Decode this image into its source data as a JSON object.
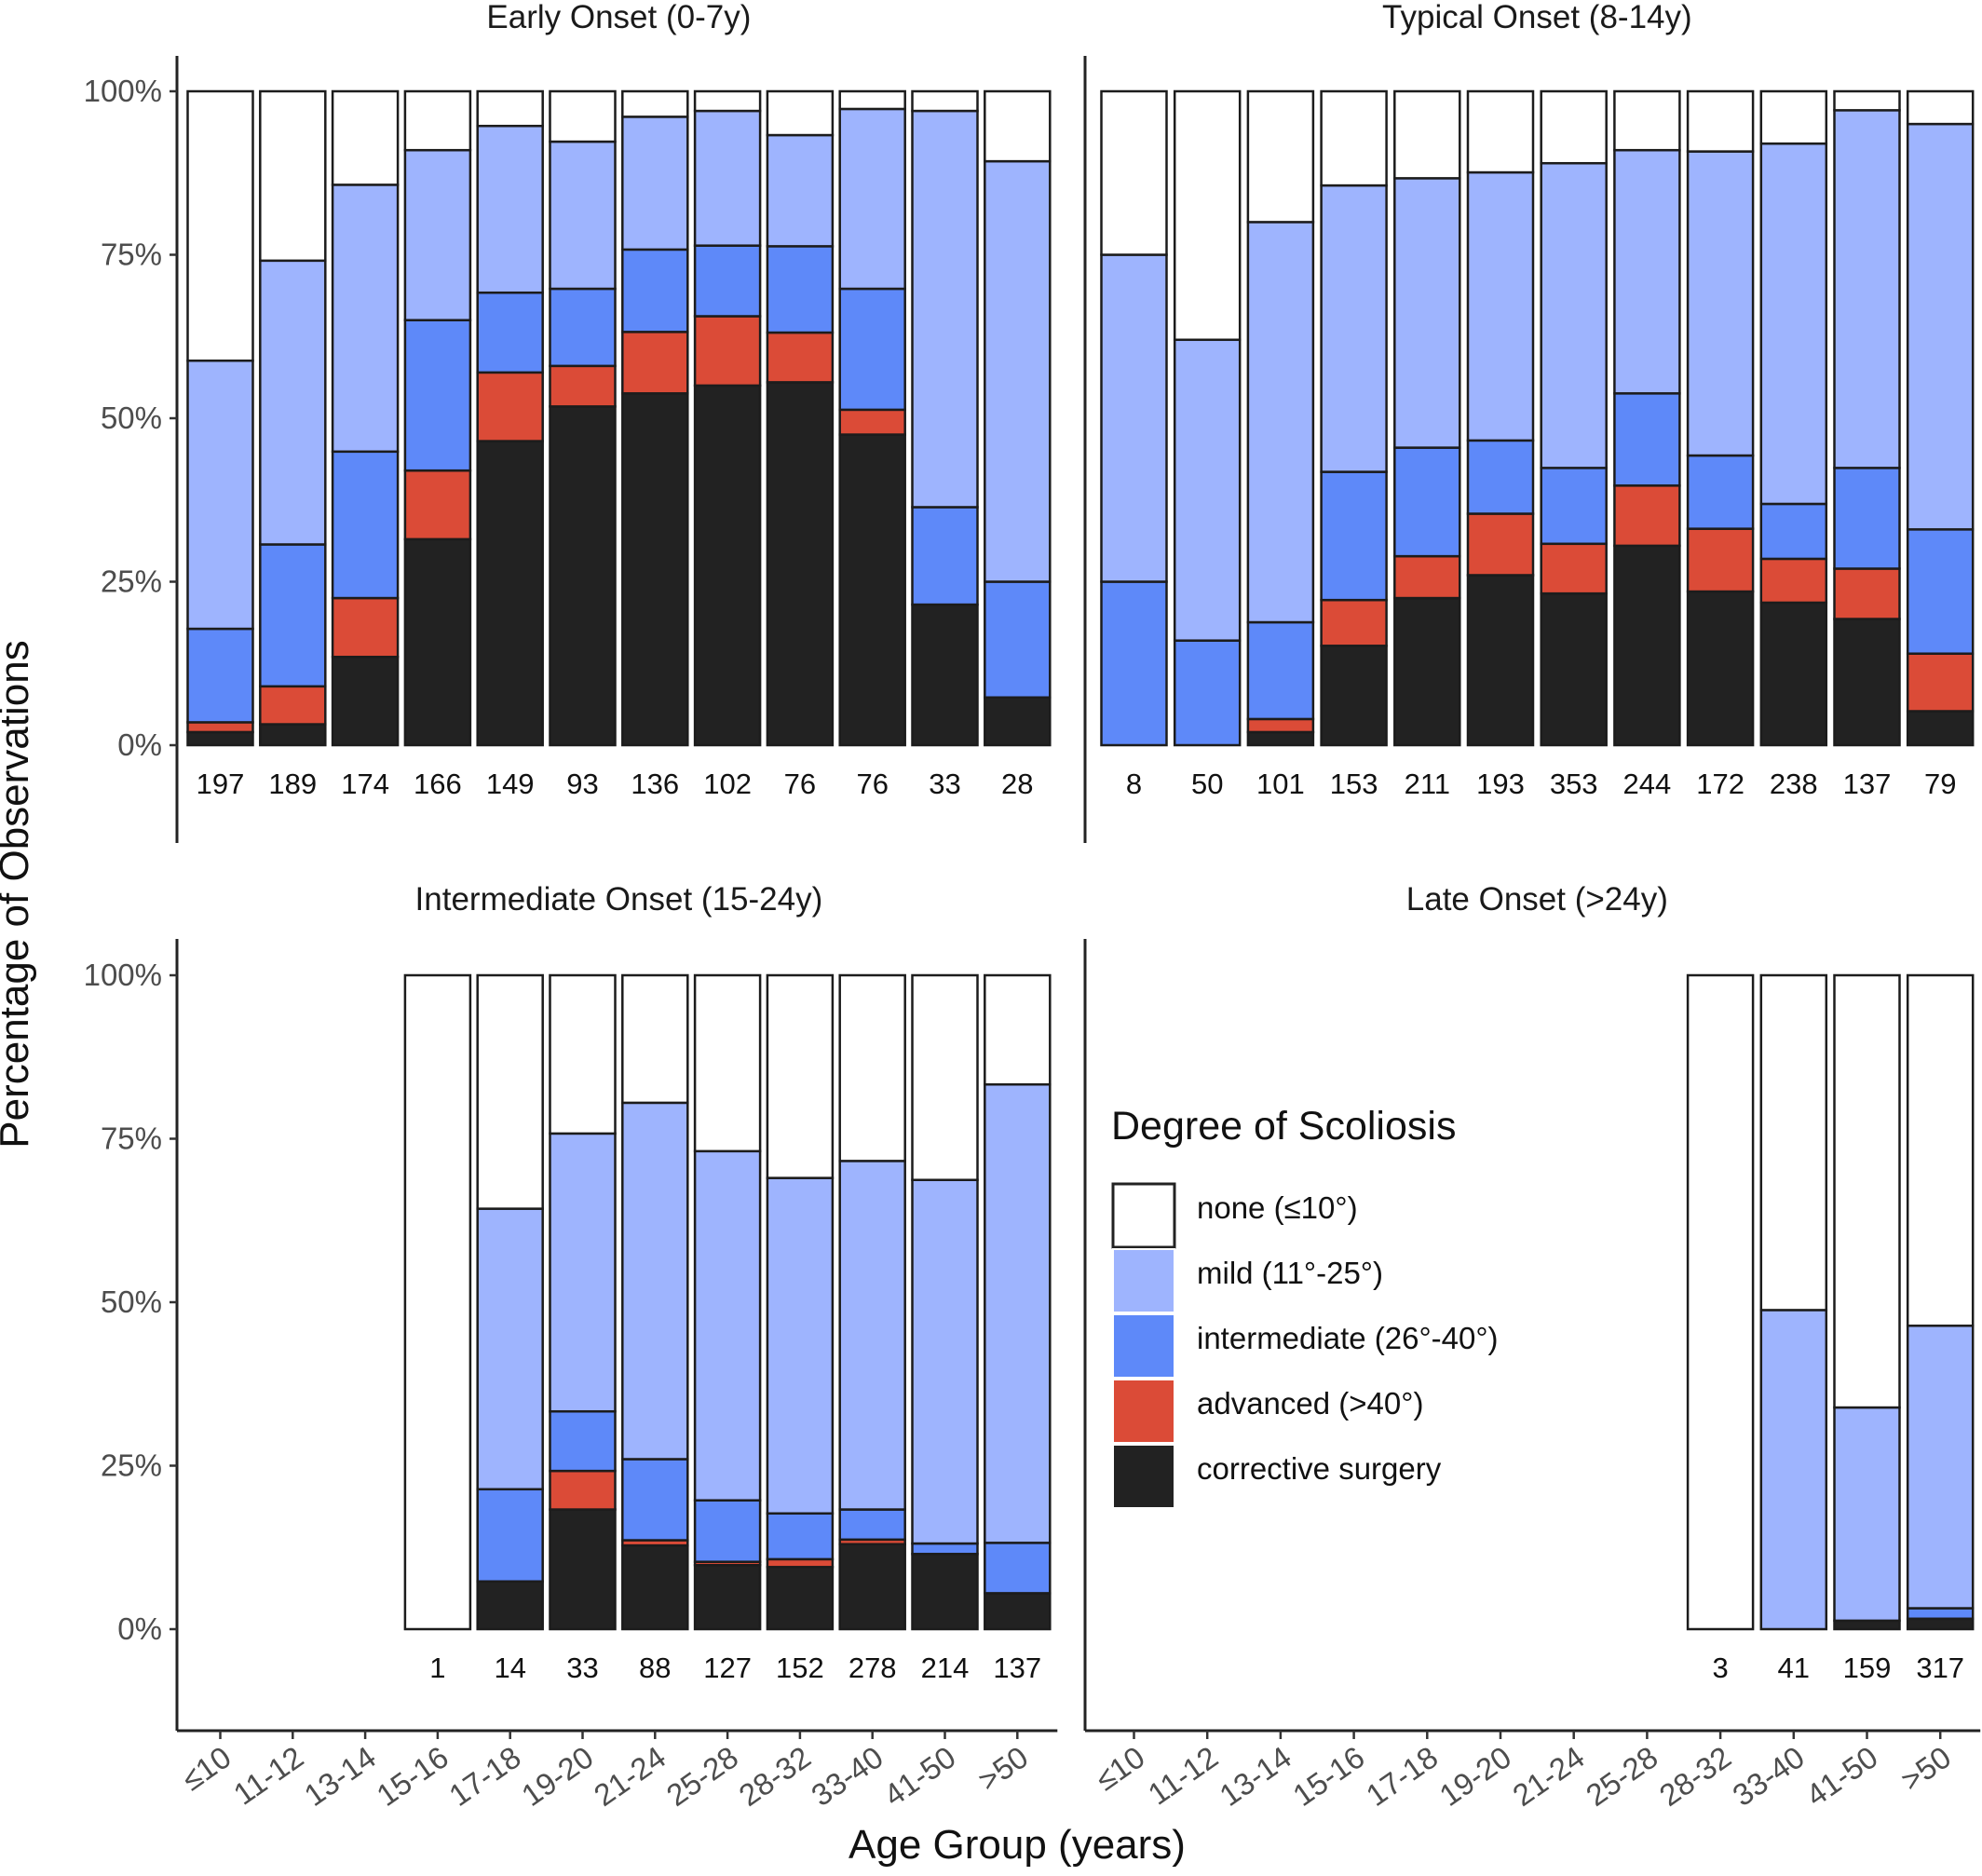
{
  "chart_data": {
    "type": "bar",
    "stacked": "percent",
    "ylabel": "Percentage of Observations",
    "xlabel": "Age Group (years)",
    "yticks": [
      "0%",
      "25%",
      "50%",
      "75%",
      "100%"
    ],
    "ylim": [
      0,
      100
    ],
    "categories": [
      "≤10",
      "11-12",
      "13-14",
      "15-16",
      "17-18",
      "19-20",
      "21-24",
      "25-28",
      "28-32",
      "33-40",
      "41-50",
      ">50"
    ],
    "legend": {
      "title": "Degree of Scoliosis",
      "placement": "inside bottom-left panel (between Intermediate and Late Onset bars)",
      "items": [
        {
          "key": "none",
          "label": "none (≤10°)",
          "color": "#ffffff"
        },
        {
          "key": "mild",
          "label": "mild (11°-25°)",
          "color": "#9eb4fe"
        },
        {
          "key": "intermediate",
          "label": "intermediate (26°-40°)",
          "color": "#5e89f9"
        },
        {
          "key": "advanced",
          "label": "advanced (>40°)",
          "color": "#db4b37"
        },
        {
          "key": "surgery",
          "label": "corrective surgery",
          "color": "#222222"
        }
      ]
    },
    "panels": [
      {
        "title": "Early Onset (0-7y)",
        "bars": [
          {
            "category": "≤10",
            "n": "197",
            "surgery": 2,
            "advanced": 1.5,
            "intermediate": 14.3,
            "mild": 41,
            "none": 41.2
          },
          {
            "category": "11-12",
            "n": "189",
            "surgery": 3.2,
            "advanced": 5.8,
            "intermediate": 21.7,
            "mild": 43.4,
            "none": 25.9
          },
          {
            "category": "13-14",
            "n": "174",
            "surgery": 13.5,
            "advanced": 9,
            "intermediate": 22.4,
            "mild": 40.8,
            "none": 14.3
          },
          {
            "category": "15-16",
            "n": "166",
            "surgery": 31.5,
            "advanced": 10.5,
            "intermediate": 23,
            "mild": 26,
            "none": 9
          },
          {
            "category": "17-18",
            "n": "149",
            "surgery": 46.5,
            "advanced": 10.5,
            "intermediate": 12.2,
            "mild": 25.5,
            "none": 5.3
          },
          {
            "category": "19-20",
            "n": "93",
            "surgery": 51.8,
            "advanced": 6.2,
            "intermediate": 11.8,
            "mild": 22.5,
            "none": 7.7
          },
          {
            "category": "21-24",
            "n": "136",
            "surgery": 53.8,
            "advanced": 9.4,
            "intermediate": 12.6,
            "mild": 20.3,
            "none": 3.9
          },
          {
            "category": "25-28",
            "n": "102",
            "surgery": 55,
            "advanced": 10.6,
            "intermediate": 10.8,
            "mild": 20.6,
            "none": 3
          },
          {
            "category": "28-32",
            "n": "76",
            "surgery": 55.5,
            "advanced": 7.6,
            "intermediate": 13.2,
            "mild": 17,
            "none": 6.7
          },
          {
            "category": "33-40",
            "n": "76",
            "surgery": 47.5,
            "advanced": 3.8,
            "intermediate": 18.5,
            "mild": 27.5,
            "none": 2.7
          },
          {
            "category": "41-50",
            "n": "33",
            "surgery": 21.5,
            "advanced": 0,
            "intermediate": 14.9,
            "mild": 60.6,
            "none": 3
          },
          {
            "category": ">50",
            "n": "28",
            "surgery": 7.3,
            "advanced": 0,
            "intermediate": 17.7,
            "mild": 64.3,
            "none": 10.7
          }
        ]
      },
      {
        "title": "Typical Onset (8-14y)",
        "bars": [
          {
            "category": "≤10",
            "n": "8",
            "surgery": 0,
            "advanced": 0,
            "intermediate": 25,
            "mild": 50,
            "none": 25
          },
          {
            "category": "11-12",
            "n": "50",
            "surgery": 0,
            "advanced": 0,
            "intermediate": 16,
            "mild": 46,
            "none": 38
          },
          {
            "category": "13-14",
            "n": "101",
            "surgery": 2,
            "advanced": 2,
            "intermediate": 14.8,
            "mild": 61.2,
            "none": 20
          },
          {
            "category": "15-16",
            "n": "153",
            "surgery": 15.2,
            "advanced": 7,
            "intermediate": 19.6,
            "mild": 43.8,
            "none": 14.4
          },
          {
            "category": "17-18",
            "n": "211",
            "surgery": 22.5,
            "advanced": 6.4,
            "intermediate": 16.6,
            "mild": 41.2,
            "none": 13.3
          },
          {
            "category": "19-20",
            "n": "193",
            "surgery": 26,
            "advanced": 9.4,
            "intermediate": 11.2,
            "mild": 41,
            "none": 12.4
          },
          {
            "category": "21-24",
            "n": "353",
            "surgery": 23.2,
            "advanced": 7.6,
            "intermediate": 11.6,
            "mild": 46.6,
            "none": 11
          },
          {
            "category": "25-28",
            "n": "244",
            "surgery": 30.5,
            "advanced": 9.2,
            "intermediate": 14.1,
            "mild": 37.2,
            "none": 9
          },
          {
            "category": "28-32",
            "n": "172",
            "surgery": 23.5,
            "advanced": 9.6,
            "intermediate": 11.2,
            "mild": 46.5,
            "none": 9.2
          },
          {
            "category": "33-40",
            "n": "238",
            "surgery": 21.8,
            "advanced": 6.7,
            "intermediate": 8.4,
            "mild": 55.1,
            "none": 8
          },
          {
            "category": "41-50",
            "n": "137",
            "surgery": 19.3,
            "advanced": 7.7,
            "intermediate": 15.4,
            "mild": 54.7,
            "none": 2.9
          },
          {
            "category": ">50",
            "n": "79",
            "surgery": 5.2,
            "advanced": 8.8,
            "intermediate": 19,
            "mild": 62,
            "none": 5
          }
        ]
      },
      {
        "title": "Intermediate Onset (15-24y)",
        "bars": [
          {
            "category": "15-16",
            "n": "1",
            "surgery": 0,
            "advanced": 0,
            "intermediate": 0,
            "mild": 0,
            "none": 100
          },
          {
            "category": "17-18",
            "n": "14",
            "surgery": 7.3,
            "advanced": 0,
            "intermediate": 14.1,
            "mild": 42.9,
            "none": 35.7
          },
          {
            "category": "19-20",
            "n": "33",
            "surgery": 18.3,
            "advanced": 5.9,
            "intermediate": 9.1,
            "mild": 42.5,
            "none": 24.2
          },
          {
            "category": "21-24",
            "n": "88",
            "surgery": 12.8,
            "advanced": 0.8,
            "intermediate": 12.4,
            "mild": 54.5,
            "none": 19.5
          },
          {
            "category": "25-28",
            "n": "127",
            "surgery": 9.8,
            "advanced": 0.5,
            "intermediate": 9.4,
            "mild": 53.4,
            "none": 26.9
          },
          {
            "category": "28-32",
            "n": "152",
            "surgery": 9.5,
            "advanced": 1.2,
            "intermediate": 7,
            "mild": 51.3,
            "none": 31
          },
          {
            "category": "33-40",
            "n": "278",
            "surgery": 13,
            "advanced": 0.7,
            "intermediate": 4.6,
            "mild": 53.3,
            "none": 28.4
          },
          {
            "category": "41-50",
            "n": "214",
            "surgery": 11.5,
            "advanced": 0,
            "intermediate": 1.6,
            "mild": 55.6,
            "none": 31.3
          },
          {
            "category": ">50",
            "n": "137",
            "surgery": 5.5,
            "advanced": 0,
            "intermediate": 7.7,
            "mild": 70.1,
            "none": 16.7
          }
        ]
      },
      {
        "title": "Late Onset (>24y)",
        "bars": [
          {
            "category": "28-32",
            "n": "3",
            "surgery": 0,
            "advanced": 0,
            "intermediate": 0,
            "mild": 0,
            "none": 100
          },
          {
            "category": "33-40",
            "n": "41",
            "surgery": 0,
            "advanced": 0,
            "intermediate": 0,
            "mild": 48.8,
            "none": 51.2
          },
          {
            "category": "41-50",
            "n": "159",
            "surgery": 1.3,
            "advanced": 0,
            "intermediate": 0,
            "mild": 32.6,
            "none": 66.1
          },
          {
            "category": ">50",
            "n": "317",
            "surgery": 1.6,
            "advanced": 0,
            "intermediate": 1.6,
            "mild": 43.2,
            "none": 53.6
          }
        ]
      }
    ]
  }
}
